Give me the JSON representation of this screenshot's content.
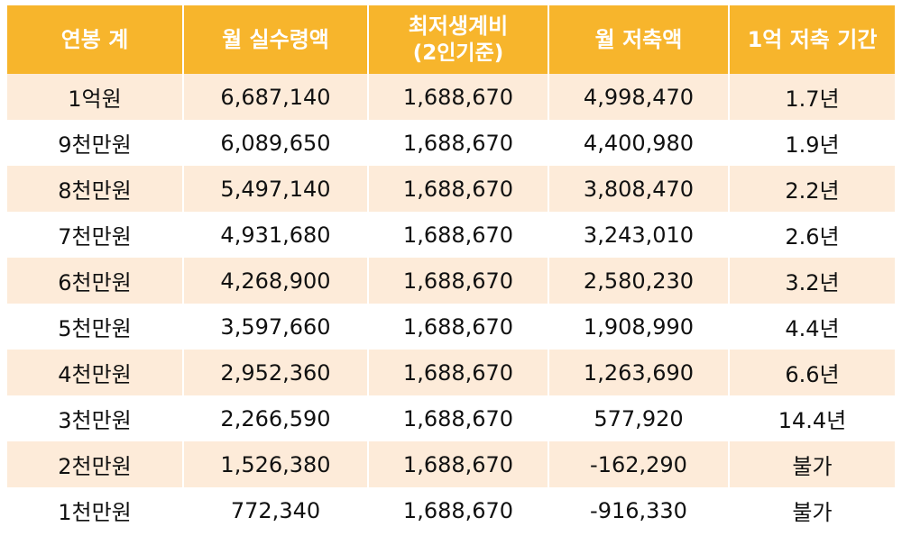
{
  "headers": [
    "연봉 계",
    "월 실수령액",
    "최저생계비",
    "월 저축액",
    "1억 저축 기간"
  ],
  "header_sub": "(2인기준)",
  "rows": [
    [
      "1억원",
      "6,687,140",
      "1,688,670",
      "4,998,470",
      "1.7년"
    ],
    [
      "9천만원",
      "6,089,650",
      "1,688,670",
      "4,400,980",
      "1.9년"
    ],
    [
      "8천만원",
      "5,497,140",
      "1,688,670",
      "3,808,470",
      "2.2년"
    ],
    [
      "7천만원",
      "4,931,680",
      "1,688,670",
      "3,243,010",
      "2.6년"
    ],
    [
      "6천만원",
      "4,268,900",
      "1,688,670",
      "2,580,230",
      "3.2년"
    ],
    [
      "5천만원",
      "3,597,660",
      "1,688,670",
      "1,908,990",
      "4.4년"
    ],
    [
      "4천만원",
      "2,952,360",
      "1,688,670",
      "1,263,690",
      "6.6년"
    ],
    [
      "3천만원",
      "2,266,590",
      "1,688,670",
      "577,920",
      "14.4년"
    ],
    [
      "2천만원",
      "1,526,380",
      "1,688,670",
      "-162,290",
      "불가"
    ],
    [
      "1천만원",
      "772,340",
      "1,688,670",
      "-916,330",
      "불가"
    ]
  ],
  "colors": {
    "header_bg": "#f7b52c",
    "header_text": "#ffffff",
    "odd_row_bg": "#fdebd9",
    "even_row_bg": "#ffffff"
  }
}
